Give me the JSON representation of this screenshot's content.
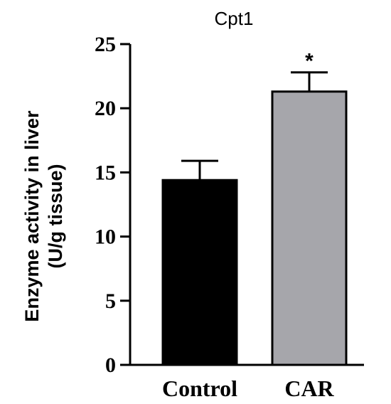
{
  "chart_data": {
    "type": "bar",
    "title": "Cpt1",
    "ylabel_lines": [
      "Enzyme activity in liver",
      "(U/g tissue)"
    ],
    "xlabel": "",
    "categories": [
      "Control",
      "CAR"
    ],
    "values": [
      14.4,
      21.3
    ],
    "errors": [
      1.5,
      1.5
    ],
    "annotations": [
      "",
      "*"
    ],
    "colors": [
      "#000000",
      "#a6a6ab"
    ],
    "ylim": [
      0,
      25
    ],
    "yticks": [
      0,
      5,
      10,
      15,
      20,
      25
    ],
    "grid": false,
    "legend": "none"
  }
}
